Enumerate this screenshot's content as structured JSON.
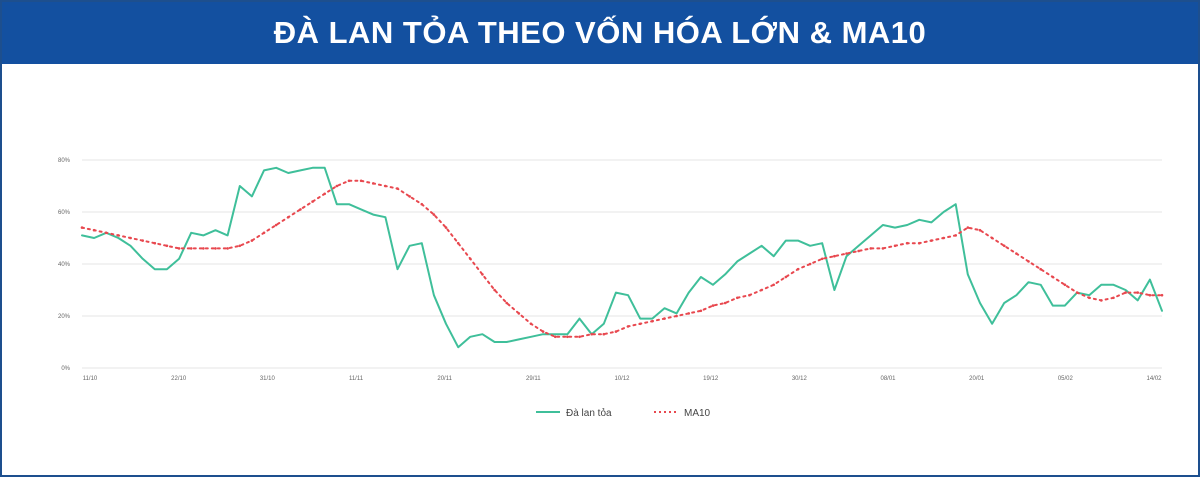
{
  "header": {
    "title": "ĐÀ LAN TỎA THEO VỐN HÓA LỚN & MA10"
  },
  "colors": {
    "banner": "#1350a0",
    "border": "#1d4f8e",
    "series_main": "#3fbf9a",
    "series_ma": "#e8484f",
    "grid": "#e6e6e6"
  },
  "chart_data": {
    "type": "line",
    "ylim": [
      0,
      0.8
    ],
    "y_ticks": [
      0,
      0.2,
      0.4,
      0.6,
      0.8
    ],
    "y_tick_labels": [
      "0%",
      "20%",
      "40%",
      "60%",
      "80%"
    ],
    "x_tick_labels": [
      "11/10",
      "22/10",
      "31/10",
      "11/11",
      "20/11",
      "29/11",
      "10/12",
      "19/12",
      "30/12",
      "08/01",
      "20/01",
      "05/02",
      "14/02"
    ],
    "grid": true,
    "legend_position": "bottom",
    "series": [
      {
        "name": "Đà lan tỏa",
        "color": "#3fbf9a",
        "style": "solid",
        "values": [
          0.51,
          0.5,
          0.52,
          0.5,
          0.47,
          0.42,
          0.38,
          0.38,
          0.42,
          0.52,
          0.51,
          0.53,
          0.51,
          0.7,
          0.66,
          0.76,
          0.77,
          0.75,
          0.76,
          0.77,
          0.77,
          0.63,
          0.63,
          0.61,
          0.59,
          0.58,
          0.38,
          0.47,
          0.48,
          0.28,
          0.17,
          0.08,
          0.12,
          0.13,
          0.1,
          0.1,
          0.11,
          0.12,
          0.13,
          0.13,
          0.13,
          0.19,
          0.13,
          0.17,
          0.29,
          0.28,
          0.19,
          0.19,
          0.23,
          0.21,
          0.29,
          0.35,
          0.32,
          0.36,
          0.41,
          0.44,
          0.47,
          0.43,
          0.49,
          0.49,
          0.47,
          0.48,
          0.3,
          0.43,
          0.47,
          0.51,
          0.55,
          0.54,
          0.55,
          0.57,
          0.56,
          0.6,
          0.63,
          0.36,
          0.25,
          0.17,
          0.25,
          0.28,
          0.33,
          0.32,
          0.24,
          0.24,
          0.29,
          0.28,
          0.32,
          0.32,
          0.3,
          0.26,
          0.34,
          0.22
        ]
      },
      {
        "name": "MA10",
        "color": "#e8484f",
        "style": "dashed",
        "values": [
          0.54,
          0.53,
          0.52,
          0.51,
          0.5,
          0.49,
          0.48,
          0.47,
          0.46,
          0.46,
          0.46,
          0.46,
          0.46,
          0.47,
          0.49,
          0.52,
          0.55,
          0.58,
          0.61,
          0.64,
          0.67,
          0.7,
          0.72,
          0.72,
          0.71,
          0.7,
          0.69,
          0.66,
          0.63,
          0.59,
          0.54,
          0.48,
          0.42,
          0.36,
          0.3,
          0.25,
          0.21,
          0.17,
          0.14,
          0.12,
          0.12,
          0.12,
          0.13,
          0.13,
          0.14,
          0.16,
          0.17,
          0.18,
          0.19,
          0.2,
          0.21,
          0.22,
          0.24,
          0.25,
          0.27,
          0.28,
          0.3,
          0.32,
          0.35,
          0.38,
          0.4,
          0.42,
          0.43,
          0.44,
          0.45,
          0.46,
          0.46,
          0.47,
          0.48,
          0.48,
          0.49,
          0.5,
          0.51,
          0.54,
          0.53,
          0.5,
          0.47,
          0.44,
          0.41,
          0.38,
          0.35,
          0.32,
          0.29,
          0.27,
          0.26,
          0.27,
          0.29,
          0.29,
          0.28,
          0.28
        ]
      }
    ]
  }
}
